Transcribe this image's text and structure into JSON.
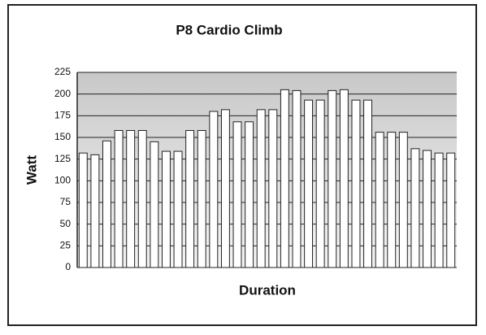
{
  "chart_data": {
    "type": "bar",
    "title": "P8 Cardio Climb",
    "x_label": "Duration",
    "y_label": "Watt",
    "categories": [
      null,
      null,
      null,
      null,
      null,
      null,
      null,
      null,
      null,
      null,
      null,
      null,
      null,
      null,
      null,
      null,
      null,
      null,
      null,
      null,
      null,
      null,
      null,
      null,
      null,
      null,
      null,
      null,
      null,
      null,
      null,
      null
    ],
    "values": [
      132,
      130,
      146,
      158,
      158,
      158,
      145,
      134,
      134,
      158,
      158,
      180,
      182,
      168,
      168,
      182,
      182,
      205,
      204,
      193,
      193,
      204,
      205,
      193,
      193,
      156,
      156,
      156,
      137,
      135,
      132,
      132
    ],
    "color": "#ffffff",
    "ylim": [
      0,
      225
    ],
    "yticks": [
      0,
      25,
      50,
      75,
      100,
      125,
      150,
      175,
      200,
      225
    ],
    "grid": true
  }
}
